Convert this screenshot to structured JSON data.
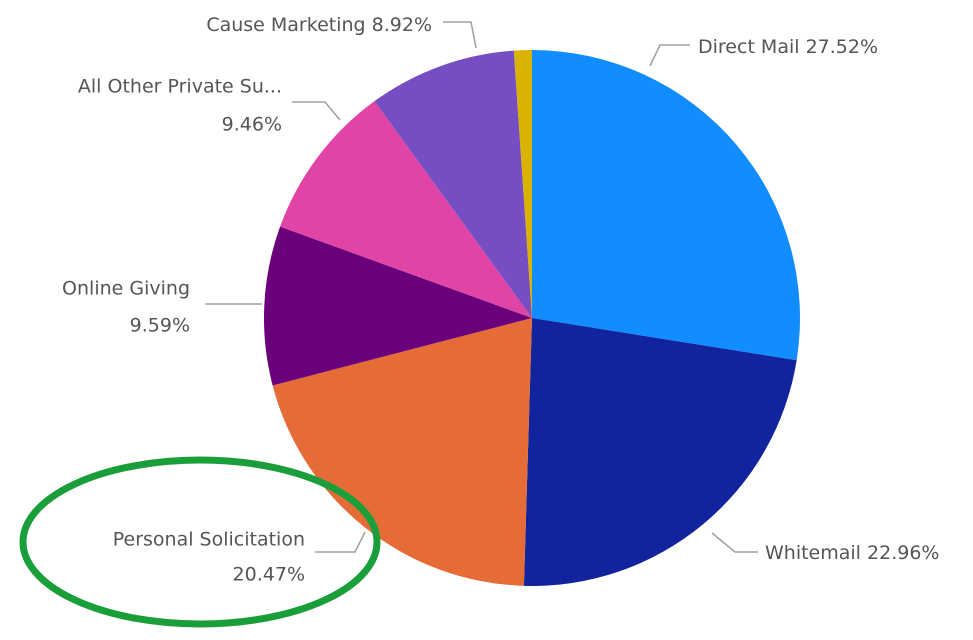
{
  "chart_data": {
    "type": "pie",
    "categories": [
      "Direct Mail",
      "Whitemail",
      "Personal Solicitation",
      "Online Giving",
      "All Other Private Su...",
      "Cause Marketing",
      null
    ],
    "values": [
      27.52,
      22.96,
      20.47,
      9.59,
      9.46,
      8.92,
      1.08
    ],
    "value_labels": [
      "27.52%",
      "22.96%",
      "20.47%",
      "9.59%",
      "9.46%",
      "8.92%",
      null
    ],
    "colors": [
      "#118dff",
      "#12239e",
      "#e66c37",
      "#6b007b",
      "#e044a7",
      "#744ec2",
      "#d9b300"
    ]
  }
}
